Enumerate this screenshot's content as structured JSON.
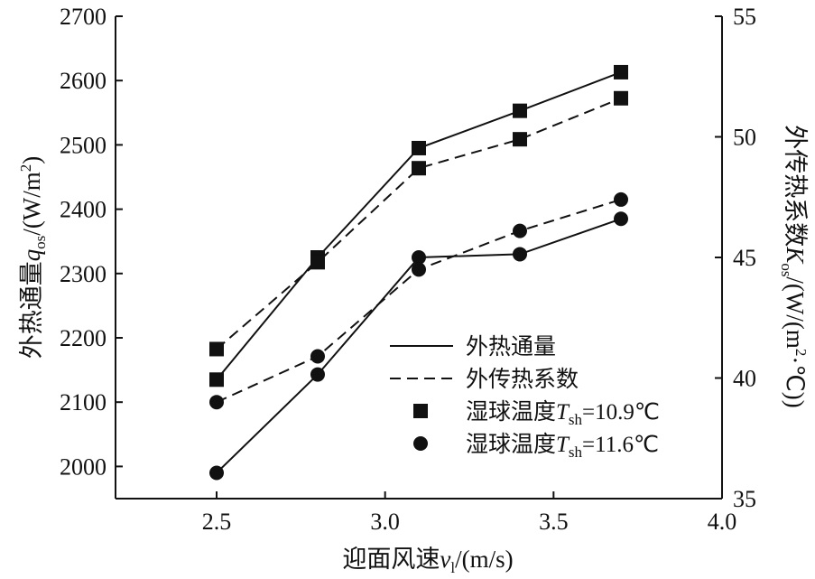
{
  "chart_data": {
    "type": "line",
    "title": "",
    "xlabel": "迎面风速",
    "xlabel_var": "v",
    "xlabel_sub": "l",
    "xlabel_unit": "/(m/s)",
    "xlim": [
      2.2,
      4.0
    ],
    "xticks": [
      "2.5",
      "3.0",
      "3.5",
      "4.0"
    ],
    "ylabel": "外热通量",
    "ylabel_var": "q",
    "ylabel_sub": "os",
    "ylabel_unit": "/(W/m",
    "ylabel_sup": "2",
    "ylabel_close": ")",
    "ylim": [
      1950,
      2700
    ],
    "yticks": [
      "2000",
      "2100",
      "2200",
      "2300",
      "2400",
      "2500",
      "2600",
      "2700"
    ],
    "y2label": "外传热系数",
    "y2label_var": "K",
    "y2label_sub": "os",
    "y2label_unit": "/(W/(m",
    "y2label_sup": "2",
    "y2label_close": "·℃))",
    "y2lim": [
      35,
      55
    ],
    "y2ticks": [
      "35",
      "40",
      "45",
      "50",
      "55"
    ],
    "x": [
      2.5,
      2.8,
      3.1,
      3.4,
      3.7
    ],
    "series": [
      {
        "name": "外热通量 (T_sh=10.9℃)",
        "axis": "left",
        "style": "solid",
        "marker": "square",
        "values": [
          2135,
          2325,
          2495,
          2553,
          2613
        ]
      },
      {
        "name": "外传热系数 (T_sh=10.9℃)",
        "axis": "right",
        "style": "dashed",
        "marker": "square",
        "values": [
          41.2,
          44.8,
          48.7,
          49.9,
          51.6
        ]
      },
      {
        "name": "外热通量 (T_sh=11.6℃)",
        "axis": "left",
        "style": "solid",
        "marker": "circle",
        "values": [
          1990,
          2143,
          2325,
          2330,
          2385
        ]
      },
      {
        "name": "外传热系数 (T_sh=11.6℃)",
        "axis": "right",
        "style": "dashed",
        "marker": "circle",
        "values": [
          39.0,
          40.9,
          44.5,
          46.1,
          47.4
        ]
      }
    ],
    "legend": {
      "position": "lower-right",
      "entries": [
        {
          "kind": "line-solid",
          "text": "外热通量"
        },
        {
          "kind": "line-dashed",
          "text": "外传热系数"
        },
        {
          "kind": "marker-square",
          "text": "湿球温度",
          "var": "T",
          "sub": "sh",
          "rest": "=10.9℃"
        },
        {
          "kind": "marker-circle",
          "text": "湿球温度",
          "var": "T",
          "sub": "sh",
          "rest": "=11.6℃"
        }
      ]
    }
  }
}
